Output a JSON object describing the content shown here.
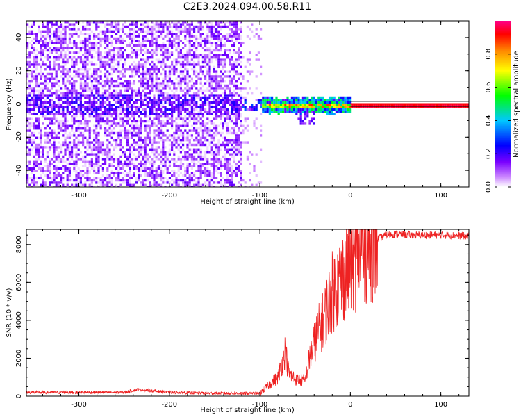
{
  "title": "C2E3.2024.094.00.58.R11",
  "chart_data": [
    {
      "type": "heatmap",
      "name": "spectrogram",
      "xlabel": "Height of straight line (km)",
      "ylabel": "Frequency (Hz)",
      "xlim": [
        -358,
        131
      ],
      "ylim": [
        -50,
        50
      ],
      "xticks": [
        -300,
        -200,
        -100,
        0,
        100
      ],
      "xtick_labels": [
        "-300",
        "-200",
        "-100",
        "0",
        "100"
      ],
      "yticks": [
        -40,
        -20,
        0,
        20,
        40
      ],
      "ytick_labels": [
        "-40",
        "-20",
        "0",
        "20",
        "40"
      ],
      "colorbar": {
        "label": "Normalized spectral amplitude",
        "range": [
          0,
          1
        ],
        "ticks": [
          0.0,
          0.2,
          0.4,
          0.6,
          0.8
        ],
        "tick_labels": [
          "0.0",
          "0.2",
          "0.4",
          "0.6",
          "0.8"
        ],
        "colors": [
          "#ffffff",
          "#8800ff",
          "#0000ff",
          "#00c8ff",
          "#00ff00",
          "#ffff00",
          "#ff8800",
          "#ff0000",
          "#ff0088"
        ]
      },
      "features": {
        "noise_region_x": [
          -358,
          -120
        ],
        "noise_fade_x": [
          -120,
          -100
        ],
        "signal_start_x": -100,
        "strong_carrier_start_x": 0,
        "carrier_frequency": 0,
        "carrier_band_hz": [
          -1.5,
          1.5
        ]
      }
    },
    {
      "type": "line",
      "name": "snr",
      "xlabel": "Height of straight line (km)",
      "ylabel": "SNR (10 * v/v)",
      "xlim": [
        -358,
        131
      ],
      "ylim": [
        0,
        8800
      ],
      "xticks": [
        -300,
        -200,
        -100,
        0,
        100
      ],
      "xtick_labels": [
        "-300",
        "-200",
        "-100",
        "0",
        "100"
      ],
      "yticks": [
        0,
        2000,
        4000,
        6000,
        8000
      ],
      "ytick_labels": [
        "0",
        "2000",
        "4000",
        "6000",
        "8000"
      ],
      "color": "#ee2222",
      "x": [
        -358,
        -300,
        -250,
        -235,
        -200,
        -150,
        -120,
        -100,
        -90,
        -80,
        -72,
        -68,
        -60,
        -50,
        -45,
        -40,
        -35,
        -30,
        -25,
        -20,
        -15,
        -10,
        -5,
        0,
        5,
        10,
        15,
        20,
        25,
        30,
        35,
        40,
        50,
        70,
        100,
        131
      ],
      "y": [
        200,
        200,
        200,
        350,
        200,
        150,
        150,
        150,
        600,
        1000,
        2400,
        1200,
        900,
        800,
        2000,
        2800,
        3500,
        4000,
        4800,
        5500,
        5800,
        6200,
        6600,
        7000,
        7300,
        7600,
        7900,
        8100,
        8200,
        8300,
        8400,
        8500,
        8550,
        8500,
        8500,
        8450
      ]
    }
  ]
}
